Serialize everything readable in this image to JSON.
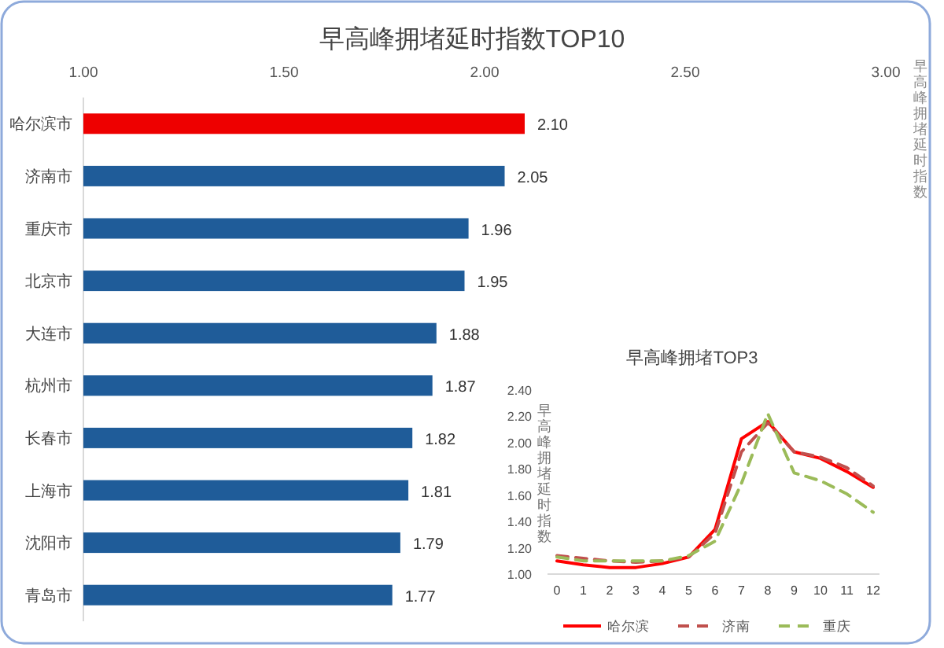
{
  "chart_data": [
    {
      "type": "bar",
      "orientation": "horizontal",
      "title": "早高峰拥堵延时指数TOP10",
      "xlabel": "早高峰拥堵延时指数",
      "categories": [
        "哈尔滨市",
        "济南市",
        "重庆市",
        "北京市",
        "大连市",
        "杭州市",
        "长春市",
        "上海市",
        "沈阳市",
        "青岛市"
      ],
      "values": [
        2.1,
        2.05,
        1.96,
        1.95,
        1.88,
        1.87,
        1.82,
        1.81,
        1.79,
        1.77
      ],
      "value_labels": [
        "2.10",
        "2.05",
        "1.96",
        "1.95",
        "1.88",
        "1.87",
        "1.82",
        "1.81",
        "1.79",
        "1.77"
      ],
      "colors": [
        "#ee0000",
        "#1f5c99",
        "#1f5c99",
        "#1f5c99",
        "#1f5c99",
        "#1f5c99",
        "#1f5c99",
        "#1f5c99",
        "#1f5c99",
        "#1f5c99"
      ],
      "xlim": [
        1,
        3
      ],
      "xticks": [
        {
          "value": 1,
          "label": "1.00"
        },
        {
          "value": 1.5,
          "label": "1.50"
        },
        {
          "value": 2,
          "label": "2.00"
        },
        {
          "value": 2.5,
          "label": "2.50"
        },
        {
          "value": 3,
          "label": "3.00"
        }
      ]
    },
    {
      "type": "line",
      "title": "早高峰拥堵TOP3",
      "ylabel": "早高峰拥堵延时指数",
      "x": [
        0,
        1,
        2,
        3,
        4,
        5,
        6,
        7,
        8,
        9,
        10,
        11,
        12
      ],
      "xlim": [
        0,
        12
      ],
      "xticks": [
        0,
        1,
        2,
        3,
        4,
        5,
        6,
        7,
        8,
        9,
        10,
        11,
        12
      ],
      "legend": "bottom",
      "ylim": [
        1,
        2.4
      ],
      "yticks": [
        {
          "value": 1,
          "label": "1.00"
        },
        {
          "value": 1.2,
          "label": "1.20"
        },
        {
          "value": 1.4,
          "label": "1.40"
        },
        {
          "value": 1.6,
          "label": "1.60"
        },
        {
          "value": 1.8,
          "label": "1.80"
        },
        {
          "value": 2,
          "label": "2.00"
        },
        {
          "value": 2.2,
          "label": "2.20"
        },
        {
          "value": 2.4,
          "label": "2.40"
        }
      ],
      "series": [
        {
          "name": "哈尔滨",
          "color": "#ff0000",
          "line_style": "solid",
          "values": [
            1.1,
            1.07,
            1.05,
            1.05,
            1.08,
            1.13,
            1.34,
            2.03,
            2.16,
            1.93,
            1.88,
            1.78,
            1.66
          ]
        },
        {
          "name": "济南",
          "color": "#c0504d",
          "line_style": "dashed",
          "values": [
            1.14,
            1.12,
            1.1,
            1.09,
            1.1,
            1.13,
            1.31,
            1.93,
            2.15,
            1.93,
            1.89,
            1.81,
            1.67
          ]
        },
        {
          "name": "重庆",
          "color": "#9bbb59",
          "line_style": "dashed",
          "values": [
            1.13,
            1.1,
            1.1,
            1.1,
            1.1,
            1.14,
            1.25,
            1.69,
            2.22,
            1.77,
            1.71,
            1.61,
            1.47
          ]
        }
      ]
    }
  ]
}
